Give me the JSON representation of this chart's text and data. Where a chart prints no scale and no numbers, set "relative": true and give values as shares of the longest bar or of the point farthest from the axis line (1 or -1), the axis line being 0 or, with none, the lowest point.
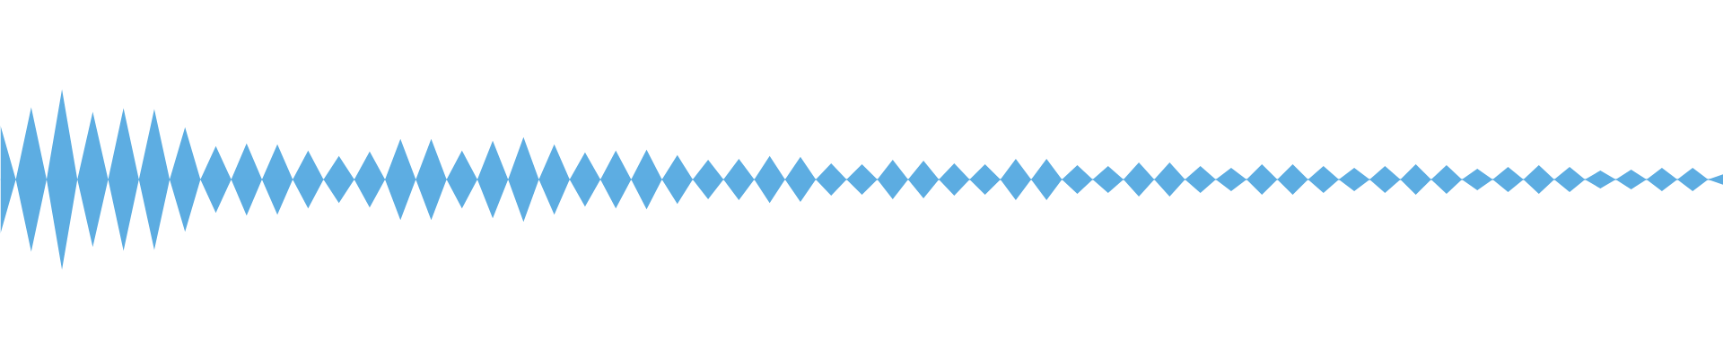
{
  "chart_data": {
    "type": "area",
    "relative": true,
    "grid": false,
    "ref_lines": [
      {
        "axis": "y",
        "value": 0,
        "color": "#5dade2"
      }
    ],
    "categories": [
      null,
      null,
      null,
      null,
      null,
      null,
      null,
      null,
      null,
      null,
      null,
      null,
      null,
      null,
      null,
      null,
      null,
      null,
      null,
      null,
      null,
      null,
      null,
      null,
      null,
      null,
      null,
      null,
      null,
      null,
      null,
      null,
      null,
      null,
      null,
      null,
      null,
      null,
      null,
      null,
      null,
      null,
      null,
      null,
      null,
      null,
      null,
      null,
      null,
      null,
      null,
      null,
      null,
      null,
      null,
      null,
      null,
      null,
      null,
      null,
      null,
      null,
      null,
      null,
      null,
      null,
      null,
      null,
      null,
      null,
      null,
      null,
      null,
      null,
      null,
      null,
      null,
      null,
      null,
      null,
      null,
      null,
      null,
      null,
      null,
      null,
      null,
      null,
      null,
      null,
      null,
      null,
      null,
      null,
      null,
      null,
      null,
      null,
      null,
      null,
      null,
      null,
      null,
      null,
      null,
      null,
      null,
      null,
      null,
      null,
      null,
      null,
      null
    ],
    "series": [
      {
        "color": "#5dade2",
        "values": [
          0.6,
          0,
          0.8,
          0,
          1.0,
          0,
          0.75,
          0,
          0.79,
          0,
          0.78,
          0,
          0.58,
          0,
          0.37,
          0,
          0.4,
          0,
          0.39,
          0,
          0.32,
          0,
          0.26,
          0,
          0.31,
          0,
          0.45,
          0,
          0.45,
          0,
          0.32,
          0,
          0.43,
          0,
          0.47,
          0,
          0.39,
          0,
          0.3,
          0,
          0.32,
          0,
          0.33,
          0,
          0.27,
          0,
          0.22,
          0,
          0.23,
          0,
          0.26,
          0,
          0.25,
          0,
          0.18,
          0,
          0.17,
          0,
          0.22,
          0,
          0.21,
          0,
          0.18,
          0,
          0.17,
          0,
          0.23,
          0,
          0.23,
          0,
          0.16,
          0,
          0.15,
          0,
          0.19,
          0,
          0.19,
          0,
          0.15,
          0,
          0.13,
          0,
          0.17,
          0,
          0.17,
          0,
          0.15,
          0,
          0.13,
          0,
          0.15,
          0,
          0.17,
          0,
          0.16,
          0,
          0.12,
          0,
          0.14,
          0,
          0.16,
          0,
          0.14,
          0,
          0.1,
          0,
          0.11,
          0,
          0.13,
          0,
          0.13,
          0,
          0.06
        ]
      },
      {
        "color": "#5cace1",
        "values": [
          -0.6,
          0,
          -0.8,
          0,
          -1.0,
          0,
          -0.75,
          0,
          -0.79,
          0,
          -0.78,
          0,
          -0.58,
          0,
          -0.37,
          0,
          -0.4,
          0,
          -0.39,
          0,
          -0.32,
          0,
          -0.26,
          0,
          -0.31,
          0,
          -0.45,
          0,
          -0.45,
          0,
          -0.32,
          0,
          -0.43,
          0,
          -0.47,
          0,
          -0.39,
          0,
          -0.3,
          0,
          -0.32,
          0,
          -0.33,
          0,
          -0.27,
          0,
          -0.22,
          0,
          -0.23,
          0,
          -0.26,
          0,
          -0.25,
          0,
          -0.18,
          0,
          -0.17,
          0,
          -0.22,
          0,
          -0.21,
          0,
          -0.18,
          0,
          -0.17,
          0,
          -0.23,
          0,
          -0.23,
          0,
          -0.16,
          0,
          -0.15,
          0,
          -0.19,
          0,
          -0.19,
          0,
          -0.15,
          0,
          -0.13,
          0,
          -0.17,
          0,
          -0.17,
          0,
          -0.15,
          0,
          -0.13,
          0,
          -0.15,
          0,
          -0.17,
          0,
          -0.16,
          0,
          -0.12,
          0,
          -0.14,
          0,
          -0.16,
          0,
          -0.14,
          0,
          -0.1,
          0,
          -0.11,
          0,
          -0.13,
          0,
          -0.13,
          0,
          -0.06
        ]
      }
    ]
  }
}
